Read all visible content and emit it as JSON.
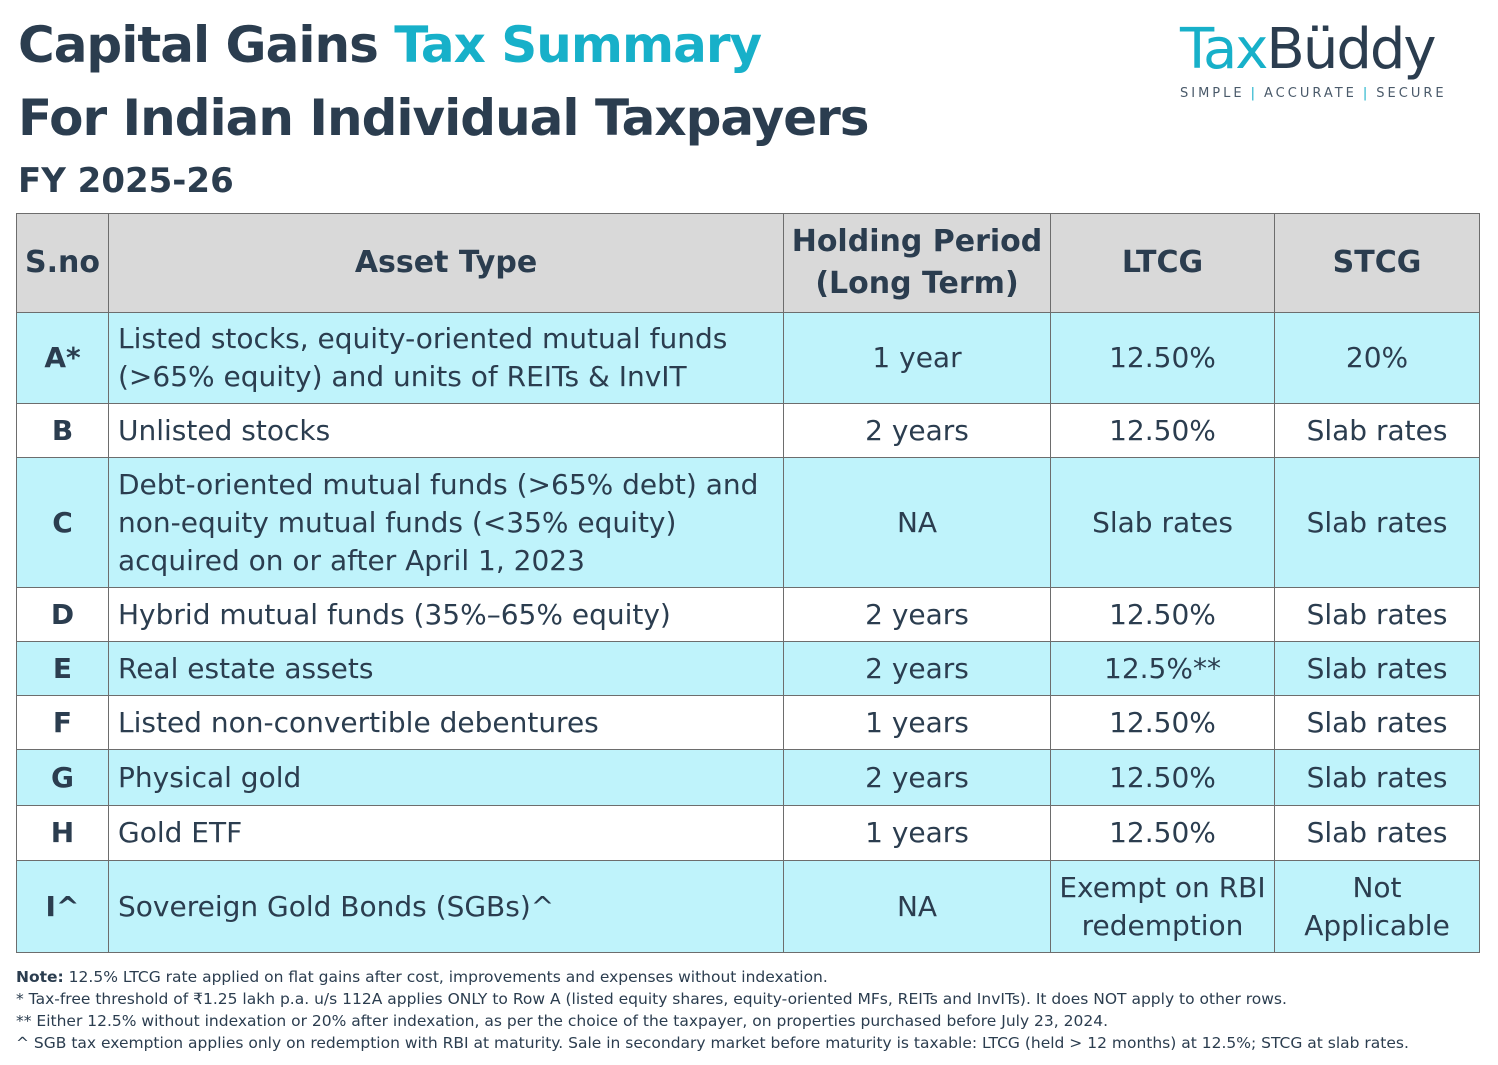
{
  "header": {
    "title_part1": "Capital Gains ",
    "title_part2": "Tax Summary",
    "title_line2": "For Indian Individual Taxpayers",
    "fiscal_year": "FY 2025-26"
  },
  "logo": {
    "brand_part1": "Tax",
    "brand_part2": "Büddy",
    "tagline_1": "SIMPLE",
    "tagline_sep": "|",
    "tagline_2": "ACCURATE",
    "tagline_3": "SECURE"
  },
  "table": {
    "headers": {
      "sno": "S.no",
      "asset": "Asset Type",
      "holding_l1": "Holding Period",
      "holding_l2": "(Long Term)",
      "ltcg": "LTCG",
      "stcg": "STCG"
    },
    "rows": [
      {
        "sno": "A*",
        "asset": "Listed stocks, equity-oriented mutual funds (>65% equity) and units of REITs & InvIT",
        "holding": "1 year",
        "ltcg": "12.50%",
        "stcg": "20%"
      },
      {
        "sno": "B",
        "asset": "Unlisted stocks",
        "holding": "2 years",
        "ltcg": "12.50%",
        "stcg": "Slab rates"
      },
      {
        "sno": "C",
        "asset": "Debt-oriented mutual funds (>65% debt) and non-equity mutual funds (<35% equity) acquired on or after April 1, 2023",
        "holding": "NA",
        "ltcg": "Slab rates",
        "stcg": "Slab rates"
      },
      {
        "sno": "D",
        "asset": "Hybrid mutual funds (35%–65% equity)",
        "holding": "2 years",
        "ltcg": "12.50%",
        "stcg": "Slab rates"
      },
      {
        "sno": "E",
        "asset": "Real estate assets",
        "holding": "2 years",
        "ltcg": "12.5%**",
        "stcg": "Slab rates"
      },
      {
        "sno": "F",
        "asset": "Listed non-convertible debentures",
        "holding": "1 years",
        "ltcg": "12.50%",
        "stcg": "Slab rates"
      },
      {
        "sno": "G",
        "asset": "Physical gold",
        "holding": "2 years",
        "ltcg": "12.50%",
        "stcg": "Slab rates"
      },
      {
        "sno": "H",
        "asset": "Gold ETF",
        "holding": "1 years",
        "ltcg": "12.50%",
        "stcg": "Slab rates"
      },
      {
        "sno": "I^",
        "asset": "Sovereign Gold Bonds (SGBs)^",
        "holding": "NA",
        "ltcg": "Exempt on RBI redemption",
        "stcg": "Not Applicable"
      }
    ]
  },
  "notes": {
    "label": "Note:",
    "note1": " 12.5% LTCG rate applied on flat gains after cost, improvements and expenses without indexation.",
    "note2": "* Tax-free threshold of ₹1.25 lakh p.a. u/s 112A applies ONLY to Row A (listed equity shares, equity-oriented MFs, REITs and InvITs). It does NOT apply to other rows.",
    "note3": "** Either 12.5% without indexation or 20% after indexation, as per the choice of the taxpayer, on properties purchased before July 23, 2024.",
    "note4": "^ SGB tax exemption applies only on redemption with RBI at maturity. Sale in secondary market before maturity is taxable: LTCG (held > 12 months) at 12.5%; STCG at slab rates."
  }
}
